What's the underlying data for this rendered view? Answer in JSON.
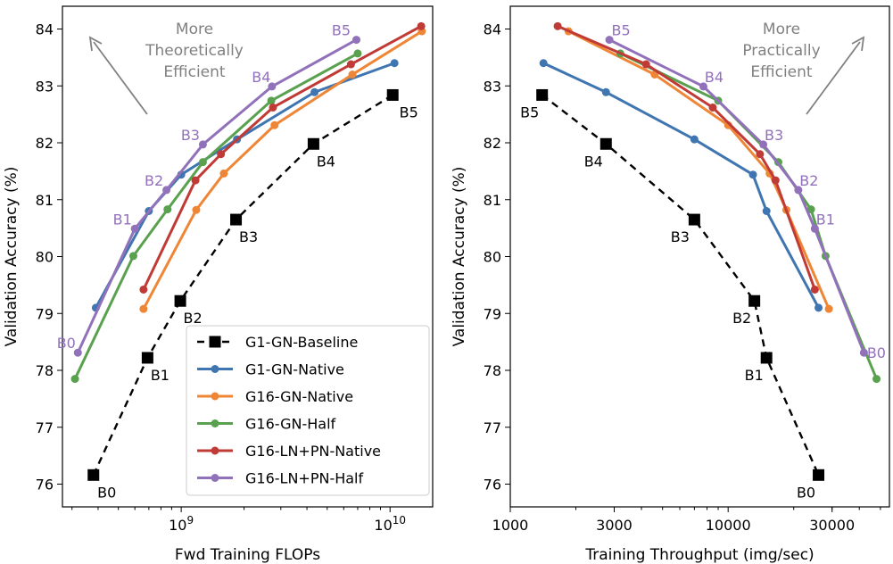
{
  "chart_data": [
    {
      "type": "line",
      "xlabel": "Fwd Training FLOPs",
      "ylabel": "Validation Accuracy (%)",
      "xscale": "log",
      "xlim": [
        270000000,
        16000000000
      ],
      "ylim": [
        75.6,
        84.4
      ],
      "xticks": [
        {
          "value": 1000000000,
          "base": "10",
          "exp": "9"
        },
        {
          "value": 10000000000,
          "base": "10",
          "exp": "10"
        }
      ],
      "yticks": [
        76,
        77,
        78,
        79,
        80,
        81,
        82,
        83,
        84
      ],
      "annotation": {
        "lines": [
          "More",
          "Theoretically",
          "Efficient"
        ],
        "arrow": "up-left"
      },
      "series": [
        {
          "name": "G1-GN-Baseline",
          "color": "#000000",
          "dashed": true,
          "marker": "square",
          "points": [
            [
              380000000,
              76.16
            ],
            [
              690000000,
              78.22
            ],
            [
              990000000,
              79.22
            ],
            [
              1830000000,
              80.65
            ],
            [
              4300000000,
              81.98
            ],
            [
              10300000000,
              82.84
            ]
          ],
          "labels": [
            "B0",
            "B1",
            "B2",
            "B3",
            "B4",
            "B5"
          ]
        },
        {
          "name": "G1-GN-Native",
          "color": "#3f75b0",
          "dashed": false,
          "marker": "circle",
          "points": [
            [
              390000000,
              79.1
            ],
            [
              700000000,
              80.8
            ],
            [
              1000000000,
              81.44
            ],
            [
              1850000000,
              82.06
            ],
            [
              4350000000,
              82.89
            ],
            [
              10500000000,
              83.4
            ]
          ]
        },
        {
          "name": "G16-GN-Native",
          "color": "#ef8636",
          "dashed": false,
          "marker": "circle",
          "points": [
            [
              660000000,
              79.08
            ],
            [
              1180000000,
              80.82
            ],
            [
              1600000000,
              81.46
            ],
            [
              2800000000,
              82.31
            ],
            [
              6600000000,
              83.2
            ],
            [
              14200000000,
              83.96
            ]
          ]
        },
        {
          "name": "G16-GN-Half",
          "color": "#59a14f",
          "dashed": false,
          "marker": "circle",
          "points": [
            [
              310000000,
              77.85
            ],
            [
              590000000,
              80.01
            ],
            [
              860000000,
              80.83
            ],
            [
              1270000000,
              81.66
            ],
            [
              2700000000,
              82.74
            ],
            [
              7000000000,
              83.57
            ]
          ]
        },
        {
          "name": "G16-LN+PN-Native",
          "color": "#c03a36",
          "dashed": false,
          "marker": "circle",
          "points": [
            [
              660000000,
              79.42
            ],
            [
              1170000000,
              81.34
            ],
            [
              1550000000,
              81.8
            ],
            [
              2750000000,
              82.62
            ],
            [
              6500000000,
              83.38
            ],
            [
              14100000000,
              84.05
            ]
          ]
        },
        {
          "name": "G16-LN+PN-Half",
          "color": "#9271bb",
          "dashed": false,
          "marker": "circle",
          "points": [
            [
              320000000,
              78.31
            ],
            [
              600000000,
              80.49
            ],
            [
              850000000,
              81.17
            ],
            [
              1270000000,
              81.97
            ],
            [
              2720000000,
              82.99
            ],
            [
              6900000000,
              83.81
            ]
          ],
          "labels": [
            "B0",
            "B1",
            "B2",
            "B3",
            "B4",
            "B5"
          ]
        }
      ],
      "legend": {
        "placement": "lower-right"
      }
    },
    {
      "type": "line",
      "xlabel": "Training Throughput (img/sec)",
      "ylabel": "Validation Accuracy (%)",
      "xscale": "log",
      "xlim": [
        1000,
        55000
      ],
      "ylim": [
        75.6,
        84.4
      ],
      "xticks": [
        {
          "value": 1000,
          "label": "1000"
        },
        {
          "value": 3000,
          "label": "3000"
        },
        {
          "value": 10000,
          "label": "10000"
        },
        {
          "value": 30000,
          "label": "30000"
        }
      ],
      "yticks": [
        76,
        77,
        78,
        79,
        80,
        81,
        82,
        83,
        84
      ],
      "annotation": {
        "lines": [
          "More",
          "Practically",
          "Efficient"
        ],
        "arrow": "up-right"
      },
      "series": [
        {
          "name": "G1-GN-Baseline",
          "color": "#000000",
          "dashed": true,
          "marker": "square",
          "points": [
            [
              1400,
              82.84
            ],
            [
              2750,
              81.98
            ],
            [
              7000,
              80.65
            ],
            [
              13200,
              79.22
            ],
            [
              15000,
              78.22
            ],
            [
              26000,
              76.16
            ]
          ],
          "labels": [
            "B5",
            "B4",
            "B3",
            "B2",
            "B1",
            "B0"
          ]
        },
        {
          "name": "G1-GN-Native",
          "color": "#3f75b0",
          "dashed": false,
          "marker": "circle",
          "points": [
            [
              1420,
              83.4
            ],
            [
              2750,
              82.89
            ],
            [
              7000,
              82.06
            ],
            [
              13000,
              81.44
            ],
            [
              15000,
              80.8
            ],
            [
              26000,
              79.1
            ]
          ]
        },
        {
          "name": "G16-GN-Native",
          "color": "#ef8636",
          "dashed": false,
          "marker": "circle",
          "points": [
            [
              1850,
              83.96
            ],
            [
              4600,
              83.2
            ],
            [
              10000,
              82.31
            ],
            [
              15500,
              81.46
            ],
            [
              18500,
              80.82
            ],
            [
              29000,
              79.08
            ]
          ]
        },
        {
          "name": "G16-GN-Half",
          "color": "#59a14f",
          "dashed": false,
          "marker": "circle",
          "points": [
            [
              3200,
              83.57
            ],
            [
              9000,
              82.74
            ],
            [
              17000,
              81.66
            ],
            [
              24000,
              80.83
            ],
            [
              28000,
              80.01
            ],
            [
              48000,
              77.85
            ]
          ]
        },
        {
          "name": "G16-LN+PN-Native",
          "color": "#c03a36",
          "dashed": false,
          "marker": "circle",
          "points": [
            [
              1650,
              84.05
            ],
            [
              4200,
              83.38
            ],
            [
              8500,
              82.62
            ],
            [
              14000,
              81.8
            ],
            [
              16500,
              81.34
            ],
            [
              25000,
              79.42
            ]
          ]
        },
        {
          "name": "G16-LN+PN-Half",
          "color": "#9271bb",
          "dashed": false,
          "marker": "circle",
          "points": [
            [
              2850,
              83.81
            ],
            [
              7700,
              82.99
            ],
            [
              14500,
              81.97
            ],
            [
              21000,
              81.17
            ],
            [
              25000,
              80.49
            ],
            [
              42000,
              78.31
            ]
          ],
          "labels": [
            "B5",
            "B4",
            "B3",
            "B2",
            "B1",
            "B0"
          ]
        }
      ]
    }
  ]
}
